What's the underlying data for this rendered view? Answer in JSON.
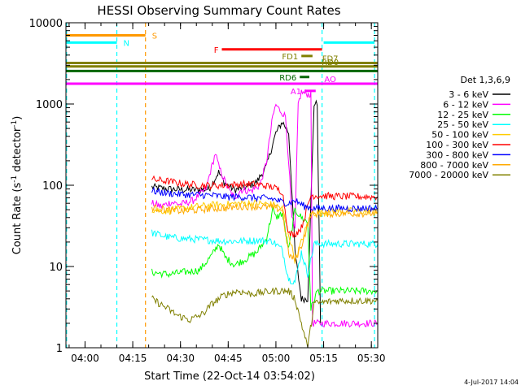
{
  "chart_data": {
    "type": "line",
    "title": "HESSI Observing Summary Count Rates",
    "xlabel": "Start Time (22-Oct-14 03:54:02)",
    "ylabel": "Count Rate (s⁻¹ detector⁻¹)",
    "ylabel_main": "Count Rate (s",
    "ylabel_sup1": "-1",
    "ylabel_mid": " detector",
    "ylabel_sup2": "-1",
    "ylabel_end": ")",
    "x_unit": "minutes after 03:54:02",
    "xlim": [
      0,
      98
    ],
    "ylim": [
      1,
      10000
    ],
    "yscale": "log",
    "x_ticks": [
      {
        "label": "04:00",
        "value": 6
      },
      {
        "label": "04:15",
        "value": 21
      },
      {
        "label": "04:30",
        "value": 36
      },
      {
        "label": "04:45",
        "value": 51
      },
      {
        "label": "05:00",
        "value": 66
      },
      {
        "label": "05:15",
        "value": 81
      },
      {
        "label": "05:30",
        "value": 96
      }
    ],
    "y_ticks": [
      {
        "label": "1",
        "value": 1
      },
      {
        "label": "10",
        "value": 10
      },
      {
        "label": "100",
        "value": 100
      },
      {
        "label": "1000",
        "value": 1000
      },
      {
        "label": "10000",
        "value": 10000
      }
    ],
    "legend_title": "Det 1,3,6,9",
    "legend_placement": "right",
    "series": [
      {
        "name": "3 - 6 keV",
        "color": "#000000",
        "points": [
          [
            27,
            95
          ],
          [
            32,
            90
          ],
          [
            37,
            88
          ],
          [
            42,
            88
          ],
          [
            45,
            90
          ],
          [
            48,
            145
          ],
          [
            50,
            105
          ],
          [
            53,
            88
          ],
          [
            56,
            92
          ],
          [
            60,
            110
          ],
          [
            63,
            170
          ],
          [
            66,
            440
          ],
          [
            68,
            600
          ],
          [
            69,
            520
          ],
          [
            70,
            440
          ],
          [
            71,
            90
          ],
          [
            72,
            15
          ],
          [
            74,
            4
          ],
          [
            76,
            4
          ],
          [
            78,
            1000
          ],
          [
            79,
            1000
          ],
          [
            80,
            2
          ]
        ]
      },
      {
        "name": "6 - 12 keV",
        "color": "#ff00ff",
        "points": [
          [
            27,
            60
          ],
          [
            30,
            55
          ],
          [
            33,
            62
          ],
          [
            36,
            58
          ],
          [
            40,
            65
          ],
          [
            44,
            90
          ],
          [
            46,
            180
          ],
          [
            47,
            250
          ],
          [
            48,
            170
          ],
          [
            51,
            90
          ],
          [
            53,
            70
          ],
          [
            55,
            88
          ],
          [
            58,
            85
          ],
          [
            61,
            100
          ],
          [
            63,
            190
          ],
          [
            65,
            700
          ],
          [
            66,
            980
          ],
          [
            67,
            860
          ],
          [
            68,
            780
          ],
          [
            69,
            700
          ],
          [
            70,
            200
          ],
          [
            71,
            40
          ],
          [
            72,
            28
          ],
          [
            73,
            1000
          ],
          [
            74,
            1400
          ],
          [
            75,
            1350
          ],
          [
            77,
            1300
          ],
          [
            77.5,
            2
          ],
          [
            98,
            2
          ]
        ]
      },
      {
        "name": "12 - 25 keV",
        "color": "#00ff00",
        "points": [
          [
            27,
            8.5
          ],
          [
            32,
            8
          ],
          [
            37,
            8.5
          ],
          [
            42,
            9
          ],
          [
            46,
            14
          ],
          [
            48,
            19
          ],
          [
            50,
            13
          ],
          [
            53,
            10.5
          ],
          [
            56,
            12
          ],
          [
            60,
            15
          ],
          [
            63,
            22
          ],
          [
            65,
            50
          ],
          [
            66,
            40
          ],
          [
            68,
            45
          ],
          [
            70,
            16
          ],
          [
            72,
            50
          ],
          [
            74,
            40
          ],
          [
            76,
            35
          ],
          [
            77,
            3
          ],
          [
            79,
            5
          ],
          [
            98,
            5
          ]
        ]
      },
      {
        "name": "25 - 50 keV",
        "color": "#00ffff",
        "points": [
          [
            27,
            26
          ],
          [
            32,
            23
          ],
          [
            37,
            22
          ],
          [
            42,
            21.5
          ],
          [
            46,
            21
          ],
          [
            50,
            20.5
          ],
          [
            55,
            20.5
          ],
          [
            60,
            21
          ],
          [
            65,
            20.5
          ],
          [
            68,
            16
          ],
          [
            70,
            7
          ],
          [
            72,
            6.5
          ],
          [
            74,
            15
          ],
          [
            76,
            8
          ],
          [
            78,
            19
          ],
          [
            85,
            19
          ],
          [
            98,
            19
          ]
        ]
      },
      {
        "name": "50 - 100 keV",
        "color": "#ffcc00",
        "points": [
          [
            27,
            50
          ],
          [
            32,
            48
          ],
          [
            37,
            52
          ],
          [
            42,
            55
          ],
          [
            46,
            57
          ],
          [
            50,
            58
          ],
          [
            55,
            60
          ],
          [
            60,
            60
          ],
          [
            65,
            58
          ],
          [
            68,
            52
          ],
          [
            72,
            12
          ],
          [
            74,
            20
          ],
          [
            77,
            45
          ],
          [
            85,
            48
          ],
          [
            98,
            48
          ]
        ]
      },
      {
        "name": "100 - 300 keV",
        "color": "#ff0000",
        "points": [
          [
            27,
            118
          ],
          [
            32,
            112
          ],
          [
            37,
            104
          ],
          [
            42,
            100
          ],
          [
            46,
            99
          ],
          [
            50,
            100
          ],
          [
            55,
            103
          ],
          [
            60,
            103
          ],
          [
            65,
            95
          ],
          [
            68,
            84
          ],
          [
            70,
            25
          ],
          [
            72,
            25
          ],
          [
            74,
            30
          ],
          [
            77,
            75
          ],
          [
            85,
            73
          ],
          [
            98,
            72
          ]
        ]
      },
      {
        "name": "300 - 800 keV",
        "color": "#0000ff",
        "points": [
          [
            27,
            85
          ],
          [
            32,
            80
          ],
          [
            37,
            77
          ],
          [
            42,
            76
          ],
          [
            46,
            75
          ],
          [
            50,
            72
          ],
          [
            55,
            72
          ],
          [
            60,
            70
          ],
          [
            65,
            68
          ],
          [
            68,
            62
          ],
          [
            70,
            60
          ],
          [
            72,
            65
          ],
          [
            75,
            55
          ],
          [
            78,
            52
          ],
          [
            85,
            52
          ],
          [
            98,
            52
          ]
        ]
      },
      {
        "name": "800 - 7000 keV",
        "color": "#ffaa00",
        "points": [
          [
            27,
            53
          ],
          [
            32,
            50
          ],
          [
            37,
            48
          ],
          [
            42,
            50
          ],
          [
            46,
            52
          ],
          [
            50,
            52
          ],
          [
            55,
            55
          ],
          [
            60,
            55
          ],
          [
            65,
            53
          ],
          [
            68,
            50
          ],
          [
            70,
            14
          ],
          [
            72,
            12
          ],
          [
            74,
            18
          ],
          [
            77,
            44
          ],
          [
            85,
            45
          ],
          [
            98,
            45
          ]
        ]
      },
      {
        "name": "7000 - 20000 keV",
        "color": "#808000",
        "points": [
          [
            27,
            4
          ],
          [
            31,
            3.2
          ],
          [
            35,
            2.5
          ],
          [
            39,
            2.2
          ],
          [
            43,
            2.6
          ],
          [
            46,
            3.5
          ],
          [
            50,
            4.5
          ],
          [
            54,
            5
          ],
          [
            58,
            4.6
          ],
          [
            62,
            4.8
          ],
          [
            66,
            5
          ],
          [
            70,
            5
          ],
          [
            72,
            4
          ],
          [
            74,
            2
          ],
          [
            76,
            1
          ],
          [
            78,
            3.5
          ],
          [
            85,
            3.8
          ],
          [
            98,
            3.8
          ]
        ]
      }
    ],
    "vertical_lines": [
      {
        "x": 0.2,
        "color": "#00ffff"
      },
      {
        "x": 16,
        "color": "#00ffff"
      },
      {
        "x": 25,
        "color": "#ff9900"
      },
      {
        "x": 80.5,
        "color": "#00ffff"
      },
      {
        "x": 97,
        "color": "#00ffff"
      }
    ],
    "flag_bars": [
      {
        "label": "S",
        "color": "#ff9900",
        "x_start": 0,
        "x_end": 25,
        "y": 7000,
        "label_side": "right"
      },
      {
        "label": "N",
        "color": "#00ffff",
        "x_start": 0,
        "x_end": 16,
        "y": 5700,
        "label_side": "right"
      },
      {
        "label": "",
        "color": "#00ffff",
        "x_start": 81,
        "x_end": 97,
        "y": 5700,
        "label_side": "none"
      },
      {
        "label": "F",
        "color": "#ff0000",
        "x_start": 49,
        "x_end": 80.5,
        "y": 4700,
        "label_side": "left"
      },
      {
        "label": "FD1",
        "color": "#808000",
        "x_start": 74,
        "x_end": 77.5,
        "y": 3900,
        "label_side": "left"
      },
      {
        "label": "FD7",
        "color": "#808000",
        "x_start": 0,
        "x_end": 98,
        "y": 3200,
        "label_side": "inline"
      },
      {
        "label": "RD0",
        "color": "#808000",
        "x_start": 0,
        "x_end": 98,
        "y": 2900,
        "label_side": "inline"
      },
      {
        "label": "",
        "color": "#006600",
        "x_start": 0,
        "x_end": 98,
        "y": 2550,
        "label_side": "none"
      },
      {
        "label": "RD6",
        "color": "#006600",
        "x_start": 73.5,
        "x_end": 76.5,
        "y": 2150,
        "label_side": "left"
      },
      {
        "label": "AO",
        "color": "#ff00ff",
        "x_start": 0,
        "x_end": 98,
        "y": 1780,
        "label_side": "inline"
      },
      {
        "label": "A1",
        "color": "#ff00ff",
        "x_start": 75,
        "x_end": 78.5,
        "y": 1450,
        "label_side": "left"
      }
    ],
    "footer_date": "4-Jul-2017 14:04",
    "grid": false
  }
}
